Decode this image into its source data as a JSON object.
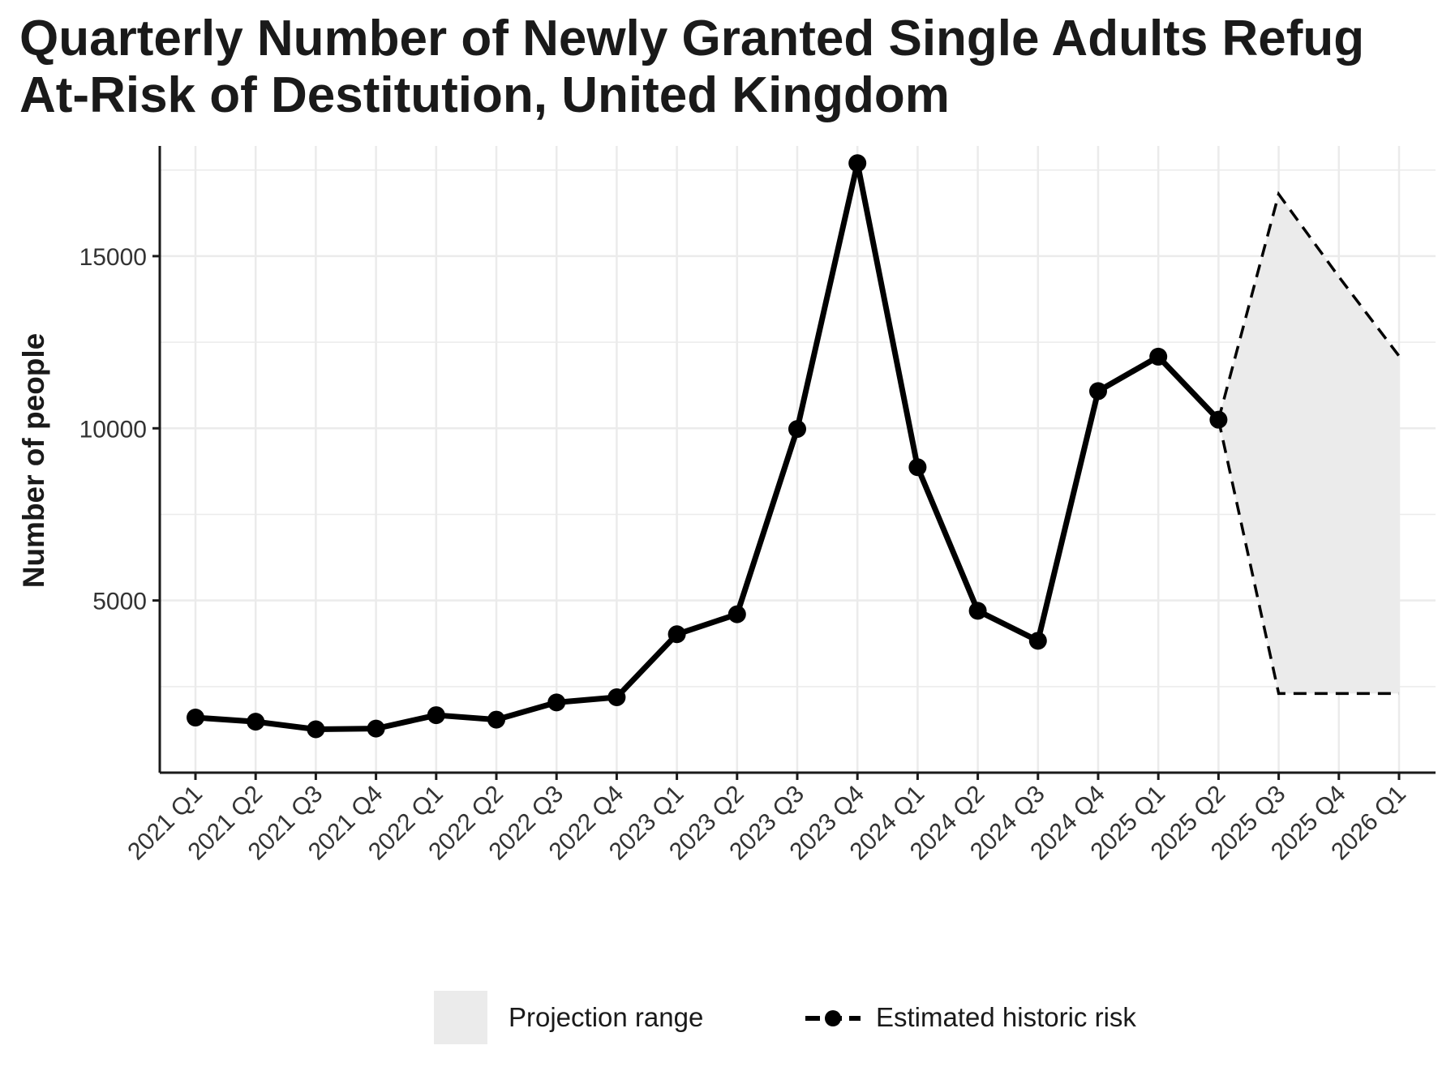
{
  "chart_data": {
    "type": "line",
    "title": "Quarterly Number of Newly Granted Single Adults Refug",
    "title_line1": "Quarterly Number of Newly Granted Single Adults Refug",
    "title_line2": "At-Risk of Destitution, United Kingdom",
    "xlabel": "",
    "ylabel": "Number of people",
    "categories": [
      "2021 Q1",
      "2021 Q2",
      "2021 Q3",
      "2021 Q4",
      "2022 Q1",
      "2022 Q2",
      "2022 Q3",
      "2022 Q4",
      "2023 Q1",
      "2023 Q2",
      "2023 Q3",
      "2023 Q4",
      "2024 Q1",
      "2024 Q2",
      "2024 Q3",
      "2024 Q4",
      "2025 Q1",
      "2025 Q2",
      "2025 Q3",
      "2025 Q4",
      "2026 Q1"
    ],
    "ylim": [
      0,
      18200
    ],
    "yticks": [
      5000,
      10000,
      15000
    ],
    "ytick_labels": [
      "5000",
      "10000",
      "15000"
    ],
    "grid": true,
    "legend_position": "bottom",
    "series": [
      {
        "name": "Estimated historic risk",
        "values": [
          1600,
          1480,
          1260,
          1280,
          1670,
          1540,
          2040,
          2190,
          4020,
          4600,
          9980,
          17700,
          8870,
          4700,
          3830,
          11080,
          12080,
          10250,
          null,
          null,
          null
        ]
      }
    ],
    "projection": {
      "name": "Projection range",
      "start_index": 17,
      "upper": [
        10250,
        16800,
        14400,
        12100
      ],
      "lower": [
        10250,
        2300,
        2300,
        2300
      ]
    },
    "colors": {
      "line": "#000000",
      "projection_fill": "#ebebeb",
      "grid": "#ebebeb",
      "axis": "#1a1a1a"
    }
  }
}
